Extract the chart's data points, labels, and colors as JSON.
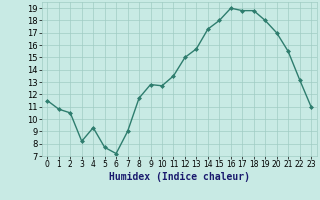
{
  "x": [
    0,
    1,
    2,
    3,
    4,
    5,
    6,
    7,
    8,
    9,
    10,
    11,
    12,
    13,
    14,
    15,
    16,
    17,
    18,
    19,
    20,
    21,
    22,
    23
  ],
  "y": [
    11.5,
    10.8,
    10.5,
    8.2,
    9.3,
    7.7,
    7.2,
    9.0,
    11.7,
    12.8,
    12.7,
    13.5,
    15.0,
    15.7,
    17.3,
    18.0,
    19.0,
    18.8,
    18.8,
    18.0,
    17.0,
    15.5,
    13.2,
    11.0
  ],
  "xlim": [
    -0.5,
    23.5
  ],
  "ylim": [
    7,
    19.5
  ],
  "yticks": [
    7,
    8,
    9,
    10,
    11,
    12,
    13,
    14,
    15,
    16,
    17,
    18,
    19
  ],
  "xticks": [
    0,
    1,
    2,
    3,
    4,
    5,
    6,
    7,
    8,
    9,
    10,
    11,
    12,
    13,
    14,
    15,
    16,
    17,
    18,
    19,
    20,
    21,
    22,
    23
  ],
  "xlabel": "Humidex (Indice chaleur)",
  "line_color": "#2e7d6e",
  "marker": "D",
  "marker_size": 2.0,
  "bg_color": "#c8eae4",
  "grid_color": "#a0ccc4",
  "xlabel_color": "#1a1a6e"
}
